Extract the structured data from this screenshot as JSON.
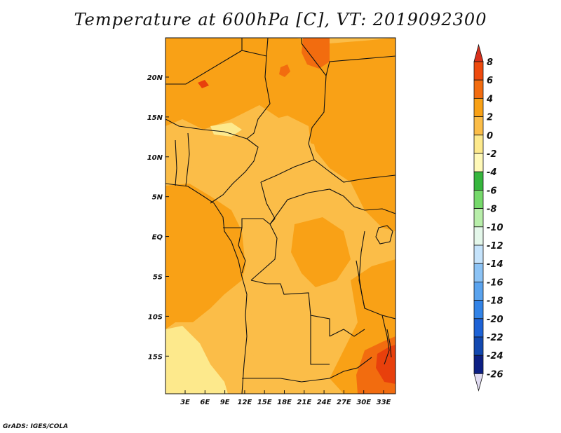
{
  "title": "Temperature at 600hPa [C], VT: 2019092300",
  "credit": "GrADS: IGES/COLA",
  "map": {
    "lat_ticks": [
      "20N",
      "15N",
      "10N",
      "5N",
      "EQ",
      "5S",
      "10S",
      "15S"
    ],
    "lon_ticks": [
      "3E",
      "6E",
      "9E",
      "12E",
      "15E",
      "18E",
      "21E",
      "24E",
      "27E",
      "30E",
      "33E"
    ],
    "colors": {
      "c0_2": "#fbbd48",
      "c2_4": "#f9a116",
      "c4_6": "#f26c0f",
      "c6_8": "#e8400c",
      "cm2_0": "#fde98c",
      "border": "#111111"
    }
  },
  "colorbar": {
    "labels": [
      "8",
      "6",
      "4",
      "2",
      "0",
      "-2",
      "-4",
      "-6",
      "-8",
      "-10",
      "-12",
      "-14",
      "-16",
      "-18",
      "-20",
      "-22",
      "-24",
      "-26"
    ],
    "colors": [
      "#d8301c",
      "#ee4a0e",
      "#f26c0f",
      "#f9a116",
      "#fbbd48",
      "#fde98c",
      "#fff9b8",
      "#36b63d",
      "#76d96b",
      "#b8eeaa",
      "#e4f7ea",
      "#c5e3fb",
      "#8cc3f5",
      "#5aa3ee",
      "#3283e7",
      "#1d62d6",
      "#1248b0",
      "#0c1f84",
      "#e1dcf2"
    ]
  }
}
